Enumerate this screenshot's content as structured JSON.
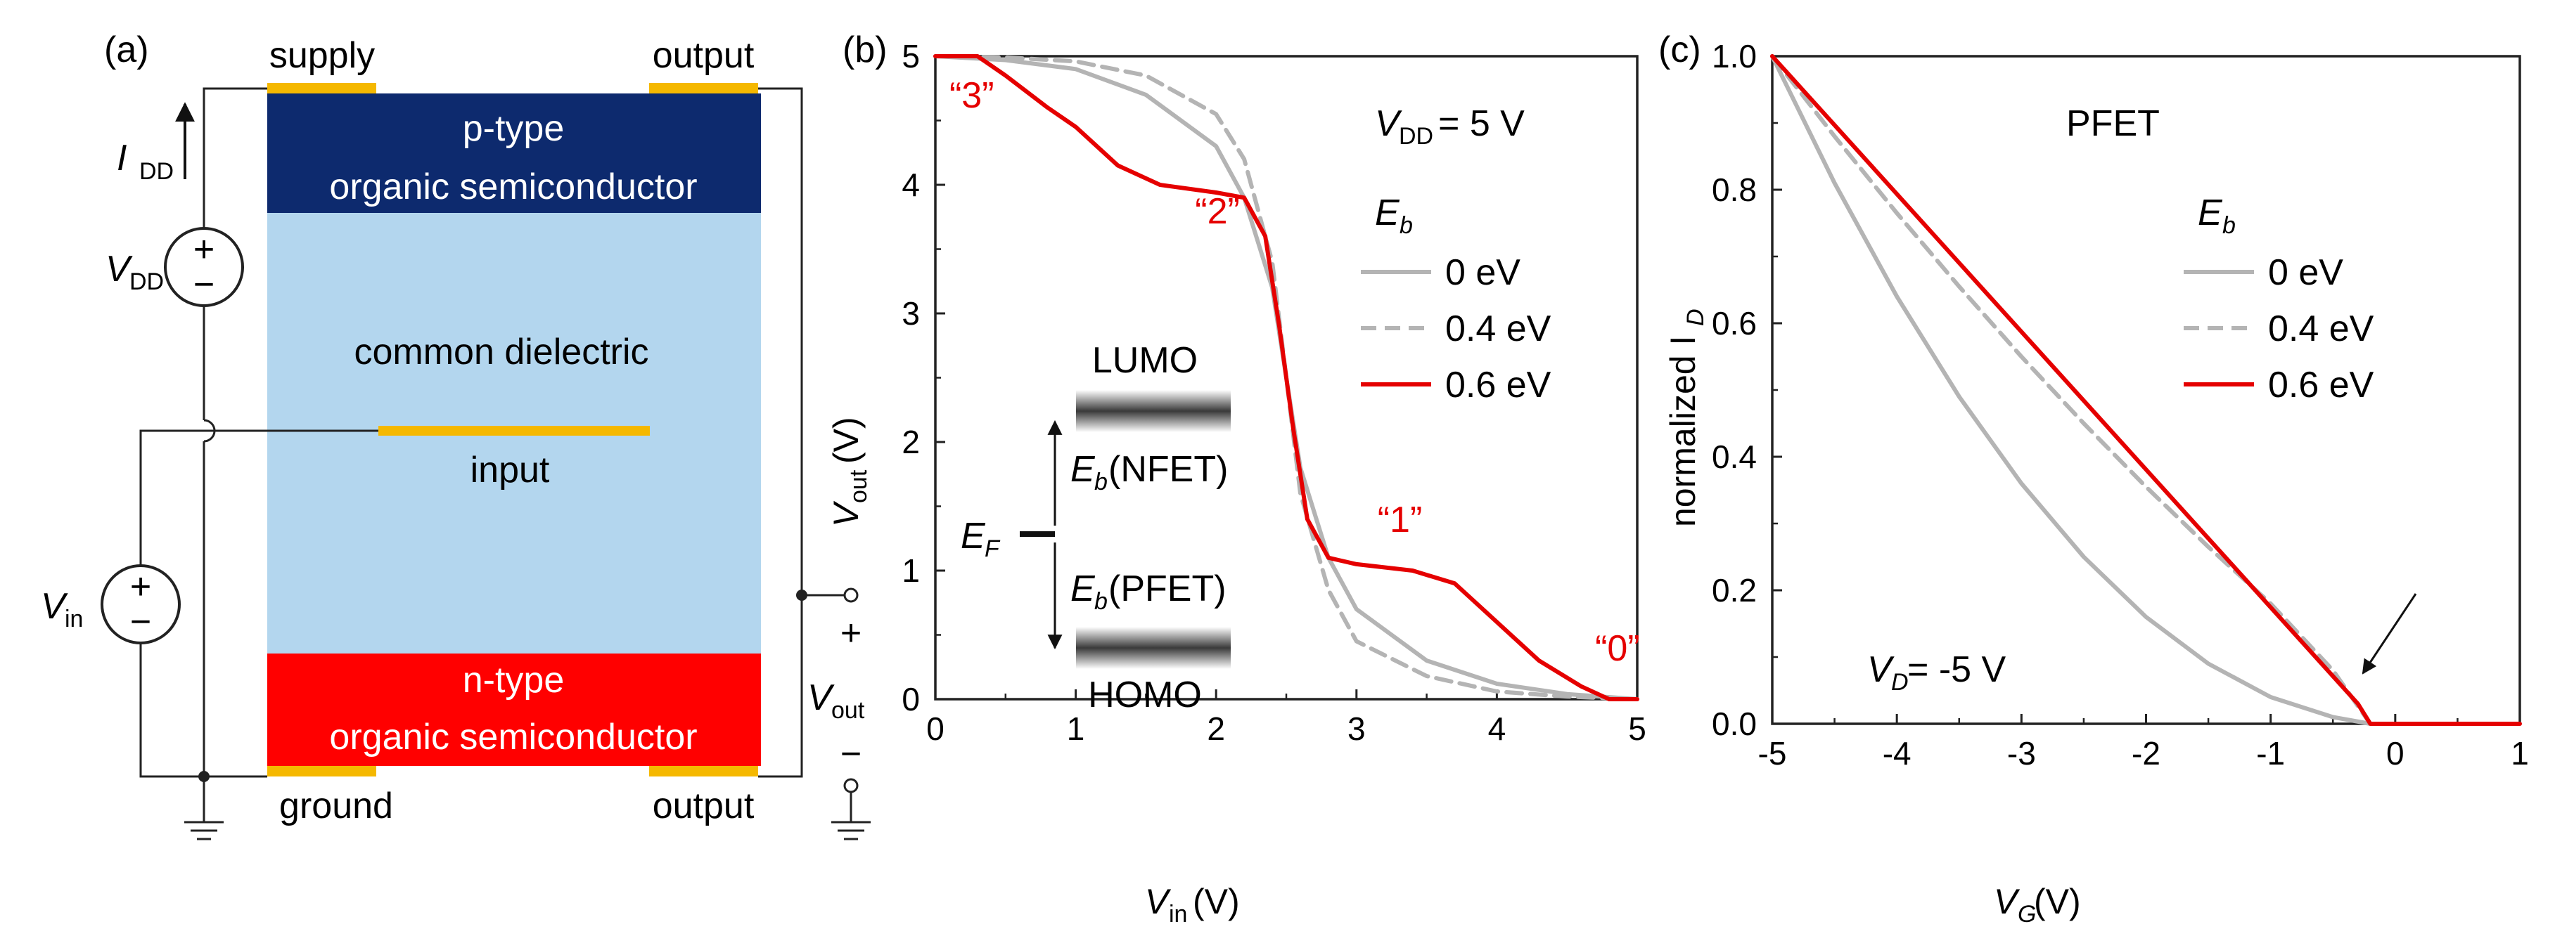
{
  "panel_a": {
    "label": "(a)",
    "top_left_contact": "supply",
    "top_right_contact": "output",
    "bottom_left_contact": "ground",
    "bottom_right_contact": "output",
    "p_layer_line1": "p-type",
    "p_layer_line2": "organic semiconductor",
    "dielectric_label": "common dielectric",
    "gate_label": "input",
    "n_layer_line1": "n-type",
    "n_layer_line2": "organic semiconductor",
    "idd_label": "I",
    "idd_sub": "DD",
    "vdd_label": "V",
    "vdd_sub": "DD",
    "vin_label": "V",
    "vin_sub": "in",
    "vout_label": "V",
    "vout_sub": "out",
    "plus": "+",
    "minus": "−",
    "colors": {
      "p_layer": "#0d2a6e",
      "dielectric": "#b3d6ee",
      "n_layer": "#ff0000",
      "contact": "#f5b800"
    }
  },
  "panel_b": {
    "label": "(b)",
    "vdd_note": "V",
    "vdd_note_sub": "DD",
    "vdd_note_value": " = 5 V",
    "legend_title": "E",
    "legend_title_sub": "b",
    "legend_items": [
      "0 eV",
      "0.4 eV",
      "0.6 eV"
    ],
    "state_labels": [
      "“3”",
      "“2”",
      "“1”",
      "“0”"
    ],
    "inset": {
      "lumo": "LUMO",
      "homo": "HOMO",
      "ef": "E",
      "ef_sub": "F",
      "eb_nfet": "E",
      "eb_nfet_sub": "b",
      "eb_nfet_suffix": "(NFET)",
      "eb_pfet": "E",
      "eb_pfet_sub": "b",
      "eb_pfet_suffix": "(PFET)"
    },
    "xlabel": "V",
    "xlabel_sub": "in",
    "xlabel_unit": " (V)",
    "ylabel": "V",
    "ylabel_sub": "out",
    "ylabel_unit": " (V)"
  },
  "panel_c": {
    "label": "(c)",
    "title": "PFET",
    "legend_title": "E",
    "legend_title_sub": "b",
    "legend_items": [
      "0 eV",
      "0.4 eV",
      "0.6 eV"
    ],
    "vd_note": "V",
    "vd_note_sub": "D",
    "vd_note_value": " = -5 V",
    "xlabel": "V",
    "xlabel_sub": "G",
    "xlabel_unit": " (V)",
    "ylabel": "normalized I",
    "ylabel_sub": "D"
  },
  "chart_data": [
    {
      "type": "line",
      "panel": "b",
      "xlim": [
        0,
        5
      ],
      "ylim": [
        0,
        5
      ],
      "xticks": [
        0,
        1,
        2,
        3,
        4,
        5
      ],
      "yticks": [
        0,
        1,
        2,
        3,
        4,
        5
      ],
      "series": [
        {
          "name": "0 eV",
          "color": "#b4b4b4",
          "style": "solid",
          "x": [
            0,
            0.5,
            1.0,
            1.5,
            2.0,
            2.2,
            2.4,
            2.5,
            2.6,
            2.8,
            3.0,
            3.5,
            4.0,
            4.5,
            5.0
          ],
          "y": [
            5.0,
            4.97,
            4.9,
            4.7,
            4.3,
            3.9,
            3.2,
            2.5,
            1.8,
            1.1,
            0.7,
            0.3,
            0.12,
            0.04,
            0.0
          ]
        },
        {
          "name": "0.4 eV",
          "color": "#b4b4b4",
          "style": "dashed",
          "x": [
            0,
            0.5,
            1.0,
            1.5,
            2.0,
            2.2,
            2.4,
            2.5,
            2.6,
            2.8,
            3.0,
            3.5,
            4.0,
            4.5,
            5.0
          ],
          "y": [
            5.0,
            4.99,
            4.96,
            4.85,
            4.55,
            4.2,
            3.4,
            2.5,
            1.6,
            0.85,
            0.45,
            0.18,
            0.06,
            0.02,
            0.0
          ]
        },
        {
          "name": "0.6 eV",
          "color": "#e50000",
          "style": "solid",
          "x": [
            0,
            0.3,
            0.5,
            0.8,
            1.0,
            1.3,
            1.6,
            2.0,
            2.2,
            2.35,
            2.45,
            2.5,
            2.55,
            2.65,
            2.8,
            3.0,
            3.4,
            3.7,
            4.0,
            4.3,
            4.6,
            4.8,
            5.0
          ],
          "y": [
            5.0,
            5.0,
            4.85,
            4.6,
            4.45,
            4.15,
            4.0,
            3.94,
            3.9,
            3.6,
            2.9,
            2.5,
            2.1,
            1.4,
            1.1,
            1.05,
            1.0,
            0.9,
            0.6,
            0.3,
            0.1,
            0.0,
            0.0
          ]
        }
      ],
      "annotations": [
        {
          "text": "“3”",
          "x": 0.1,
          "y": 4.6
        },
        {
          "text": "“2”",
          "x": 1.85,
          "y": 3.7
        },
        {
          "text": "“1”",
          "x": 3.15,
          "y": 1.3
        },
        {
          "text": "“0”",
          "x": 4.7,
          "y": 0.3
        }
      ]
    },
    {
      "type": "line",
      "panel": "c",
      "xlim": [
        -5,
        1
      ],
      "ylim": [
        0,
        1.0
      ],
      "xticks": [
        -5,
        -4,
        -3,
        -2,
        -1,
        0,
        1
      ],
      "yticks": [
        0.0,
        0.2,
        0.4,
        0.6,
        0.8,
        1.0
      ],
      "series": [
        {
          "name": "0 eV",
          "color": "#b4b4b4",
          "style": "solid",
          "x": [
            -5,
            -4.5,
            -4,
            -3.5,
            -3,
            -2.5,
            -2,
            -1.5,
            -1,
            -0.5,
            -0.2,
            0,
            0.5,
            1
          ],
          "y": [
            1.0,
            0.81,
            0.64,
            0.49,
            0.36,
            0.25,
            0.16,
            0.09,
            0.04,
            0.01,
            0.0,
            0.0,
            0.0,
            0.0
          ]
        },
        {
          "name": "0.4 eV",
          "color": "#b4b4b4",
          "style": "dashed",
          "x": [
            -5,
            -4.5,
            -4,
            -3.5,
            -3,
            -2.5,
            -2,
            -1.5,
            -1,
            -0.5,
            -0.2,
            0,
            0.5,
            1
          ],
          "y": [
            1.0,
            0.88,
            0.765,
            0.655,
            0.55,
            0.45,
            0.355,
            0.265,
            0.18,
            0.08,
            0.0,
            0.0,
            0.0,
            0.0
          ]
        },
        {
          "name": "0.6 eV",
          "color": "#e50000",
          "style": "solid",
          "x": [
            -5,
            -0.3,
            -0.2,
            0,
            0.5,
            1
          ],
          "y": [
            1.0,
            0.03,
            0.0,
            0.0,
            0.0,
            0.0
          ]
        }
      ]
    }
  ]
}
